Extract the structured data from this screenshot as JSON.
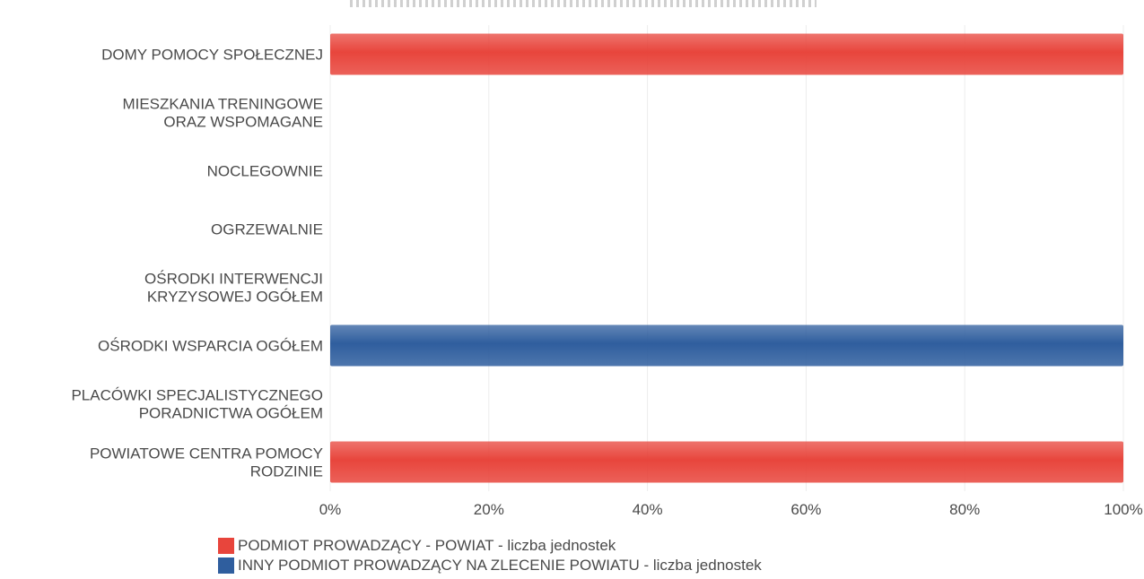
{
  "chart_data": {
    "type": "bar",
    "orientation": "horizontal",
    "stacked": true,
    "percent_stacked": true,
    "title": "",
    "xlabel": "",
    "ylabel": "",
    "xlim": [
      0,
      100
    ],
    "categories": [
      "DOMY POMOCY SPOŁECZNEJ",
      "MIESZKANIA TRENINGOWE\nORAZ WSPOMAGANE",
      "NOCLEGOWNIE",
      "OGRZEWALNIE",
      "OŚRODKI INTERWENCJI\nKRYZYSOWEJ OGÓŁEM",
      "OŚRODKI WSPARCIA OGÓŁEM",
      "PLACÓWKI SPECJALISTYCZNEGO\nPORADNICTWA OGÓŁEM",
      "POWIATOWE CENTRA POMOCY\nRODZINIE"
    ],
    "series": [
      {
        "name": "PODMIOT PROWADZĄCY - POWIAT - liczba jednostek",
        "color": "#e8453c",
        "values": [
          100,
          0,
          0,
          0,
          0,
          0,
          0,
          100
        ]
      },
      {
        "name": "INNY PODMIOT PROWADZĄCY NA ZLECENIE POWIATU - liczba jednostek",
        "color": "#2f5e9e",
        "values": [
          0,
          0,
          0,
          0,
          0,
          100,
          0,
          0
        ]
      }
    ],
    "x_ticks": [
      "0%",
      "20%",
      "40%",
      "60%",
      "80%",
      "100%"
    ],
    "grid": true,
    "legend_position": "bottom-left"
  }
}
